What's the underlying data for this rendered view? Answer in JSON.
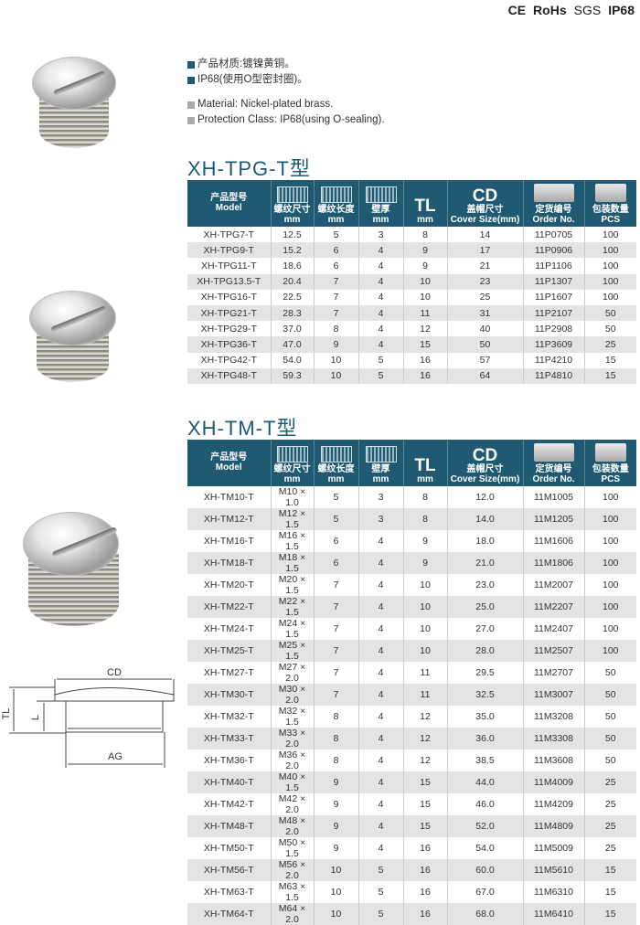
{
  "certifications": [
    "CE",
    "RoHs",
    "SGS",
    "IP68"
  ],
  "bullets_cn": [
    "产品材质:镀镍黄铜。",
    "IP68(使用O型密封圈)。"
  ],
  "bullets_en": [
    "Material: Nickel-plated brass.",
    "Protection Class: IP68(using O-sealing)."
  ],
  "colors": {
    "header": "#1f5a72",
    "title": "#1d5a76",
    "row_alt": "#e3e3e3"
  },
  "headers": {
    "model_cn": "产品型号",
    "model_en": "Model",
    "ag_label": "AG",
    "thread_size_cn": "螺纹尺寸",
    "thread_len_cn": "螺纹长度",
    "wall_cn": "壁厚",
    "unit": "mm",
    "tl": "TL",
    "cd": "CD",
    "cover_cn": "盖帽尺寸",
    "cover_en": "Cover  Size(mm)",
    "order_cn": "定货编号",
    "order_en": "Order No.",
    "pack_cn": "包装数量",
    "pack_en": "PCS"
  },
  "tables": [
    {
      "title": "XH-TPG-T型",
      "rows": [
        [
          "XH-TPG7-T",
          "12.5",
          "5",
          "3",
          "8",
          "14",
          "11P0705",
          "100"
        ],
        [
          "XH-TPG9-T",
          "15.2",
          "6",
          "4",
          "9",
          "17",
          "11P0906",
          "100"
        ],
        [
          "XH-TPG11-T",
          "18.6",
          "6",
          "4",
          "9",
          "21",
          "11P1106",
          "100"
        ],
        [
          "XH-TPG13.5-T",
          "20.4",
          "7",
          "4",
          "10",
          "23",
          "11P1307",
          "100"
        ],
        [
          "XH-TPG16-T",
          "22.5",
          "7",
          "4",
          "10",
          "25",
          "11P1607",
          "100"
        ],
        [
          "XH-TPG21-T",
          "28.3",
          "7",
          "4",
          "11",
          "31",
          "11P2107",
          "50"
        ],
        [
          "XH-TPG29-T",
          "37.0",
          "8",
          "4",
          "12",
          "40",
          "11P2908",
          "50"
        ],
        [
          "XH-TPG36-T",
          "47.0",
          "9",
          "4",
          "15",
          "50",
          "11P3609",
          "25"
        ],
        [
          "XH-TPG42-T",
          "54.0",
          "10",
          "5",
          "16",
          "57",
          "11P4210",
          "15"
        ],
        [
          "XH-TPG48-T",
          "59.3",
          "10",
          "5",
          "16",
          "64",
          "11P4810",
          "15"
        ]
      ]
    },
    {
      "title": "XH-TM-T型",
      "rows": [
        [
          "XH-TM10-T",
          "M10 × 1.0",
          "5",
          "3",
          "8",
          "12.0",
          "11M1005",
          "100"
        ],
        [
          "XH-TM12-T",
          "M12 × 1.5",
          "5",
          "3",
          "8",
          "14.0",
          "11M1205",
          "100"
        ],
        [
          "XH-TM16-T",
          "M16 × 1.5",
          "6",
          "4",
          "9",
          "18.0",
          "11M1606",
          "100"
        ],
        [
          "XH-TM18-T",
          "M18 × 1.5",
          "6",
          "4",
          "9",
          "21.0",
          "11M1806",
          "100"
        ],
        [
          "XH-TM20-T",
          "M20 × 1.5",
          "7",
          "4",
          "10",
          "23.0",
          "11M2007",
          "100"
        ],
        [
          "XH-TM22-T",
          "M22 × 1.5",
          "7",
          "4",
          "10",
          "25.0",
          "11M2207",
          "100"
        ],
        [
          "XH-TM24-T",
          "M24 × 1.5",
          "7",
          "4",
          "10",
          "27.0",
          "11M2407",
          "100"
        ],
        [
          "XH-TM25-T",
          "M25 × 1.5",
          "7",
          "4",
          "10",
          "28.0",
          "11M2507",
          "100"
        ],
        [
          "XH-TM27-T",
          "M27 × 2.0",
          "7",
          "4",
          "11",
          "29.5",
          "11M2707",
          "50"
        ],
        [
          "XH-TM30-T",
          "M30 × 2.0",
          "7",
          "4",
          "11",
          "32.5",
          "11M3007",
          "50"
        ],
        [
          "XH-TM32-T",
          "M32 × 1.5",
          "8",
          "4",
          "12",
          "35.0",
          "11M3208",
          "50"
        ],
        [
          "XH-TM33-T",
          "M33 × 2.0",
          "8",
          "4",
          "12",
          "36.0",
          "11M3308",
          "50"
        ],
        [
          "XH-TM36-T",
          "M36 × 2.0",
          "8",
          "4",
          "12",
          "38.5",
          "11M3608",
          "50"
        ],
        [
          "XH-TM40-T",
          "M40 × 1.5",
          "9",
          "4",
          "15",
          "44.0",
          "11M4009",
          "25"
        ],
        [
          "XH-TM42-T",
          "M42 × 2.0",
          "9",
          "4",
          "15",
          "46.0",
          "11M4209",
          "25"
        ],
        [
          "XH-TM48-T",
          "M48 × 2.0",
          "9",
          "4",
          "15",
          "52.0",
          "11M4809",
          "25"
        ],
        [
          "XH-TM50-T",
          "M50 × 1.5",
          "9",
          "4",
          "16",
          "54.0",
          "11M5009",
          "25"
        ],
        [
          "XH-TM56-T",
          "M56 × 2.0",
          "10",
          "5",
          "16",
          "60.0",
          "11M5610",
          "15"
        ],
        [
          "XH-TM63-T",
          "M63 × 1.5",
          "10",
          "5",
          "16",
          "67.0",
          "11M6310",
          "15"
        ],
        [
          "XH-TM64-T",
          "M64 × 2.0",
          "10",
          "5",
          "16",
          "68.0",
          "11M6410",
          "15"
        ]
      ]
    }
  ],
  "diagram": {
    "cd": "CD",
    "tl": "TL",
    "l": "L",
    "ag": "AG"
  }
}
